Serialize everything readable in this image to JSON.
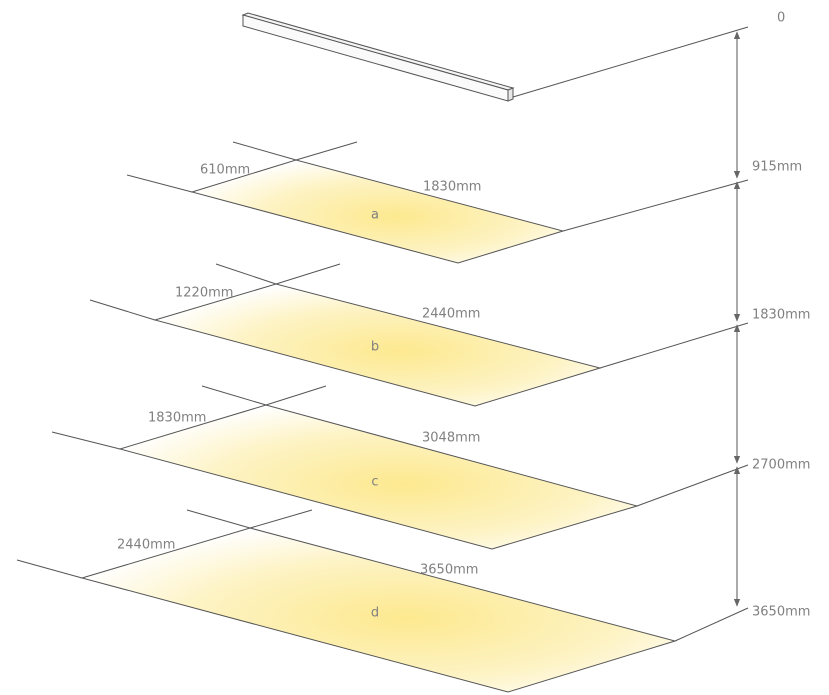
{
  "fixture_level": "0",
  "planes": [
    {
      "letter": "a",
      "width": "610mm",
      "length": "1830mm",
      "height": "915mm"
    },
    {
      "letter": "b",
      "width": "1220mm",
      "length": "2440mm",
      "height": "1830mm"
    },
    {
      "letter": "c",
      "width": "1830mm",
      "length": "3048mm",
      "height": "2700mm"
    },
    {
      "letter": "d",
      "width": "2440mm",
      "length": "3650mm",
      "height": "3650mm"
    }
  ]
}
